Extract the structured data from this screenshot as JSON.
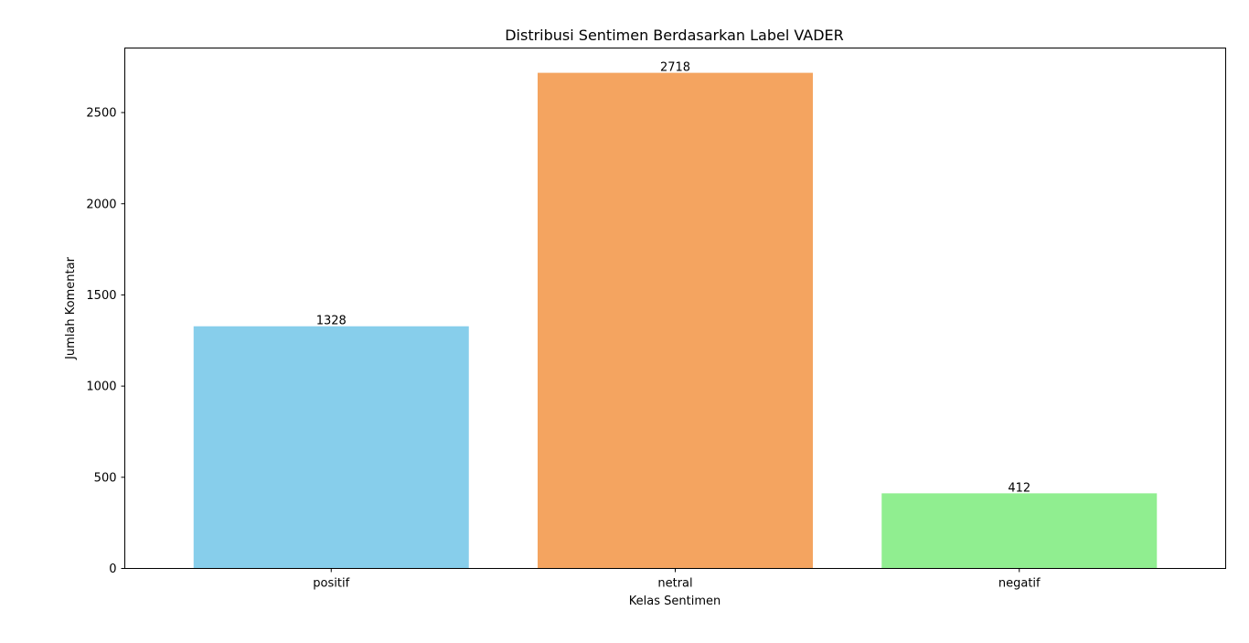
{
  "chart_data": {
    "type": "bar",
    "title": "Distribusi Sentimen Berdasarkan Label VADER",
    "xlabel": "Kelas Sentimen",
    "ylabel": "Jumlah Komentar",
    "categories": [
      "positif",
      "netral",
      "negatif"
    ],
    "values": [
      1328,
      2718,
      412
    ],
    "data_labels": [
      "1328",
      "2718",
      "412"
    ],
    "bar_colors": [
      "#87ceeb",
      "#f4a460",
      "#90ee90"
    ],
    "ylim": [
      0,
      2853.9
    ],
    "yticks": [
      0,
      500,
      1000,
      1500,
      2000,
      2500
    ],
    "ytick_labels": [
      "0",
      "500",
      "1000",
      "1500",
      "2000",
      "2500"
    ],
    "grid": false,
    "legend": "none"
  }
}
